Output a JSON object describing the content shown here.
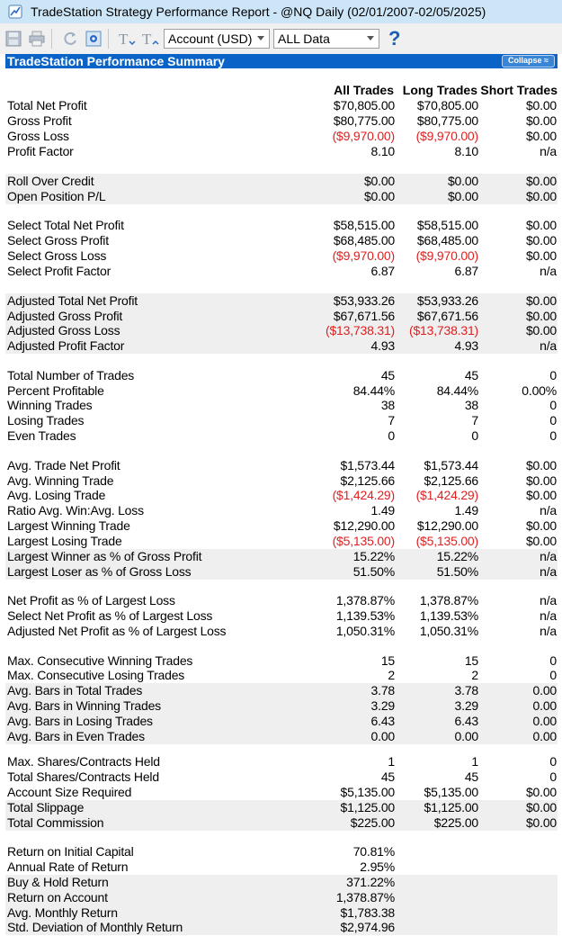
{
  "window": {
    "title": "TradeStation Strategy Performance Report - @NQ Daily (02/01/2007-02/05/2025)"
  },
  "toolbar": {
    "account_select": "Account (USD)",
    "data_select": "ALL Data",
    "icons": [
      "save-icon",
      "print-icon",
      "refresh-icon",
      "settings-icon",
      "font-increase-icon",
      "font-decrease-icon",
      "help-icon"
    ],
    "help_label": "?"
  },
  "report": {
    "header": "TradeStation Performance Summary",
    "collapse_label": "Collapse ≈",
    "columns": [
      "All Trades",
      "Long Trades",
      "Short Trades"
    ],
    "rows": [
      {
        "label": "Total Net Profit",
        "all": "$70,805.00",
        "long": "$70,805.00",
        "short": "$0.00"
      },
      {
        "label": "Gross Profit",
        "all": "$80,775.00",
        "long": "$80,775.00",
        "short": "$0.00"
      },
      {
        "label": "Gross Loss",
        "all": "($9,970.00)",
        "long": "($9,970.00)",
        "short": "$0.00"
      },
      {
        "label": "Profit Factor",
        "all": "8.10",
        "long": "8.10",
        "short": "n/a"
      },
      {
        "label": "Roll Over Credit",
        "all": "$0.00",
        "long": "$0.00",
        "short": "$0.00"
      },
      {
        "label": "Open Position P/L",
        "all": "$0.00",
        "long": "$0.00",
        "short": "$0.00"
      },
      {
        "label": "Select Total Net Profit",
        "all": "$58,515.00",
        "long": "$58,515.00",
        "short": "$0.00"
      },
      {
        "label": "Select Gross Profit",
        "all": "$68,485.00",
        "long": "$68,485.00",
        "short": "$0.00"
      },
      {
        "label": "Select Gross Loss",
        "all": "($9,970.00)",
        "long": "($9,970.00)",
        "short": "$0.00"
      },
      {
        "label": "Select Profit Factor",
        "all": "6.87",
        "long": "6.87",
        "short": "n/a"
      },
      {
        "label": "Adjusted Total Net Profit",
        "all": "$53,933.26",
        "long": "$53,933.26",
        "short": "$0.00"
      },
      {
        "label": "Adjusted Gross Profit",
        "all": "$67,671.56",
        "long": "$67,671.56",
        "short": "$0.00"
      },
      {
        "label": "Adjusted Gross Loss",
        "all": "($13,738.31)",
        "long": "($13,738.31)",
        "short": "$0.00"
      },
      {
        "label": "Adjusted Profit Factor",
        "all": "4.93",
        "long": "4.93",
        "short": "n/a"
      },
      {
        "label": "Total Number of Trades",
        "all": "45",
        "long": "45",
        "short": "0"
      },
      {
        "label": "Percent Profitable",
        "all": "84.44%",
        "long": "84.44%",
        "short": "0.00%"
      },
      {
        "label": "Winning Trades",
        "all": "38",
        "long": "38",
        "short": "0"
      },
      {
        "label": "Losing Trades",
        "all": "7",
        "long": "7",
        "short": "0"
      },
      {
        "label": "Even Trades",
        "all": "0",
        "long": "0",
        "short": "0"
      },
      {
        "label": "Avg. Trade Net Profit",
        "all": "$1,573.44",
        "long": "$1,573.44",
        "short": "$0.00"
      },
      {
        "label": "Avg. Winning Trade",
        "all": "$2,125.66",
        "long": "$2,125.66",
        "short": "$0.00"
      },
      {
        "label": "Avg. Losing Trade",
        "all": "($1,424.29)",
        "long": "($1,424.29)",
        "short": "$0.00"
      },
      {
        "label": "Ratio Avg. Win:Avg. Loss",
        "all": "1.49",
        "long": "1.49",
        "short": "n/a"
      },
      {
        "label": "Largest Winning Trade",
        "all": "$12,290.00",
        "long": "$12,290.00",
        "short": "$0.00"
      },
      {
        "label": "Largest Losing Trade",
        "all": "($5,135.00)",
        "long": "($5,135.00)",
        "short": "$0.00"
      },
      {
        "label": "Largest Winner as % of Gross Profit",
        "all": "15.22%",
        "long": "15.22%",
        "short": "n/a"
      },
      {
        "label": "Largest Loser as % of Gross Loss",
        "all": "51.50%",
        "long": "51.50%",
        "short": "n/a"
      },
      {
        "label": "Net Profit as % of Largest Loss",
        "all": "1,378.87%",
        "long": "1,378.87%",
        "short": "n/a"
      },
      {
        "label": "Select Net Profit as % of Largest Loss",
        "all": "1,139.53%",
        "long": "1,139.53%",
        "short": "n/a"
      },
      {
        "label": "Adjusted Net Profit as % of Largest Loss",
        "all": "1,050.31%",
        "long": "1,050.31%",
        "short": "n/a"
      },
      {
        "label": "Max. Consecutive Winning Trades",
        "all": "15",
        "long": "15",
        "short": "0"
      },
      {
        "label": "Max. Consecutive Losing Trades",
        "all": "2",
        "long": "2",
        "short": "0"
      },
      {
        "label": "Avg. Bars in Total Trades",
        "all": "3.78",
        "long": "3.78",
        "short": "0.00"
      },
      {
        "label": "Avg. Bars in Winning Trades",
        "all": "3.29",
        "long": "3.29",
        "short": "0.00"
      },
      {
        "label": "Avg. Bars in Losing Trades",
        "all": "6.43",
        "long": "6.43",
        "short": "0.00"
      },
      {
        "label": "Avg. Bars in Even Trades",
        "all": "0.00",
        "long": "0.00",
        "short": "0.00"
      },
      {
        "label": "Max. Shares/Contracts Held",
        "all": "1",
        "long": "1",
        "short": "0"
      },
      {
        "label": "Total Shares/Contracts Held",
        "all": "45",
        "long": "45",
        "short": "0"
      },
      {
        "label": "Account Size Required",
        "all": "$5,135.00",
        "long": "$5,135.00",
        "short": "$0.00"
      },
      {
        "label": "Total Slippage",
        "all": "$1,125.00",
        "long": "$1,125.00",
        "short": "$0.00"
      },
      {
        "label": "Total Commission",
        "all": "$225.00",
        "long": "$225.00",
        "short": "$0.00"
      },
      {
        "label": "Return on Initial Capital",
        "all": "70.81%",
        "long": "",
        "short": ""
      },
      {
        "label": "Annual Rate of Return",
        "all": "2.95%",
        "long": "",
        "short": ""
      },
      {
        "label": "Buy & Hold Return",
        "all": "371.22%",
        "long": "",
        "short": ""
      },
      {
        "label": "Return on Account",
        "all": "1,378.87%",
        "long": "",
        "short": ""
      },
      {
        "label": "Avg. Monthly Return",
        "all": "$1,783.38",
        "long": "",
        "short": ""
      },
      {
        "label": "Std. Deviation of Monthly Return",
        "all": "$2,974.96",
        "long": "",
        "short": ""
      }
    ]
  },
  "colors": {
    "negative": "#e02020",
    "header": "#0a64c8",
    "titlebar": "#cde6f7",
    "shade": "#efefef"
  }
}
